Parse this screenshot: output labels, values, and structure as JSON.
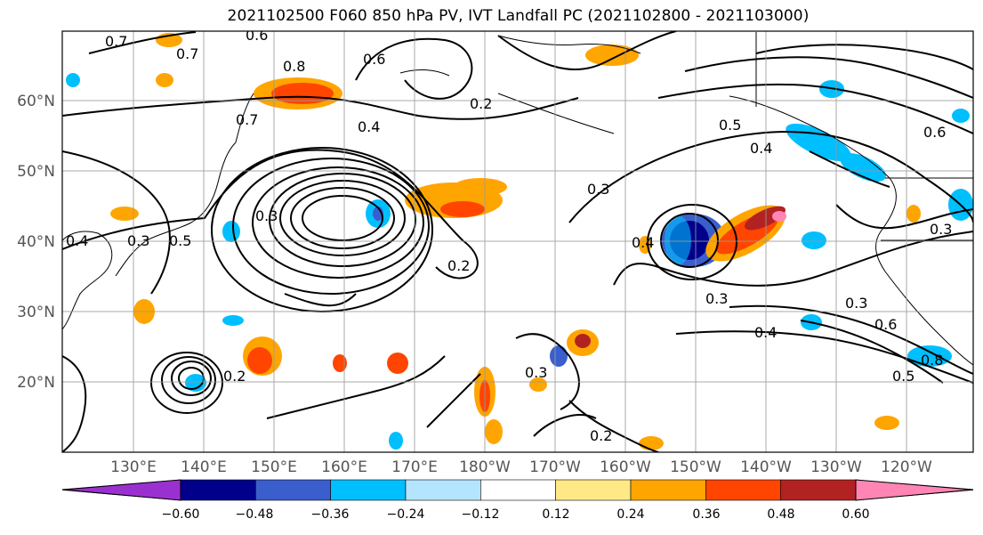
{
  "title": "2021102500 F060 850 hPa PV, IVT Landfall PC (2021102800 - 2021103000)",
  "lat_labels": [
    "60°N",
    "50°N",
    "40°N",
    "30°N",
    "20°N"
  ],
  "lon_labels": [
    "130°E",
    "140°E",
    "150°E",
    "160°E",
    "170°E",
    "180°W",
    "170°W",
    "160°W",
    "150°W",
    "140°W",
    "130°W",
    "120°W"
  ],
  "contour_labels": [
    "0.7",
    "0.6",
    "0.7",
    "0.8",
    "0.7",
    "0.6",
    "0.4",
    "0.2",
    "0.5",
    "0.4",
    "0.3",
    "0.5",
    "0.3",
    "0.4",
    "0.2",
    "0.3",
    "0.3",
    "0.4",
    "0.3",
    "0.2",
    "0.3",
    "0.4",
    "0.6",
    "0.8",
    "0.5",
    "0.3",
    "0.6",
    "0.2"
  ],
  "colorbar": {
    "ticks": [
      "−0.60",
      "−0.48",
      "−0.36",
      "−0.24",
      "−0.12",
      "0.12",
      "0.24",
      "0.36",
      "0.48",
      "0.60"
    ],
    "colors": {
      "min_extend": "#9b30d0",
      "n60": "#00008b",
      "n48": "#3a5fcd",
      "n36": "#00bfff",
      "n24": "#b3e5ff",
      "zero": "#ffffff",
      "p12": "#ffe987",
      "p24": "#ffa500",
      "p36": "#ff4500",
      "p48": "#b22222",
      "max_extend": "#ff86b4"
    }
  }
}
